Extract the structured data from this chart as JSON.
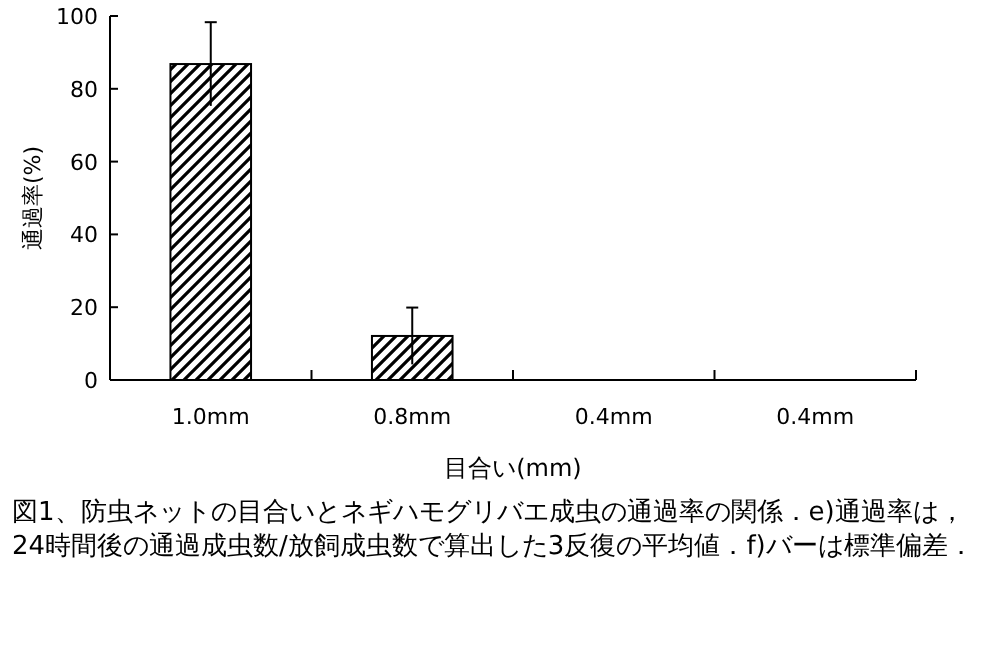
{
  "chart_data": {
    "type": "bar",
    "xlabel": "目合い(mm)",
    "ylabel": "通過率(%)",
    "categories": [
      "1.0mm",
      "0.8mm",
      "0.4mm",
      "0.4mm"
    ],
    "values": [
      86.8,
      12.1,
      0,
      0
    ],
    "errors": [
      11.5,
      7.8,
      null,
      null
    ],
    "color": "#000000",
    "ylim": [
      0,
      100
    ],
    "yticks": [
      0,
      20,
      40,
      60,
      80,
      100
    ],
    "grid": false,
    "annotations": [
      "図1、防虫ネットの目合いとネギハモグリバエ成虫の通過率の関係．e)通過率は，24時間後の通過成虫数/放飼成虫数で算出した3反復の平均値．f)バーは標準偏差．"
    ]
  }
}
